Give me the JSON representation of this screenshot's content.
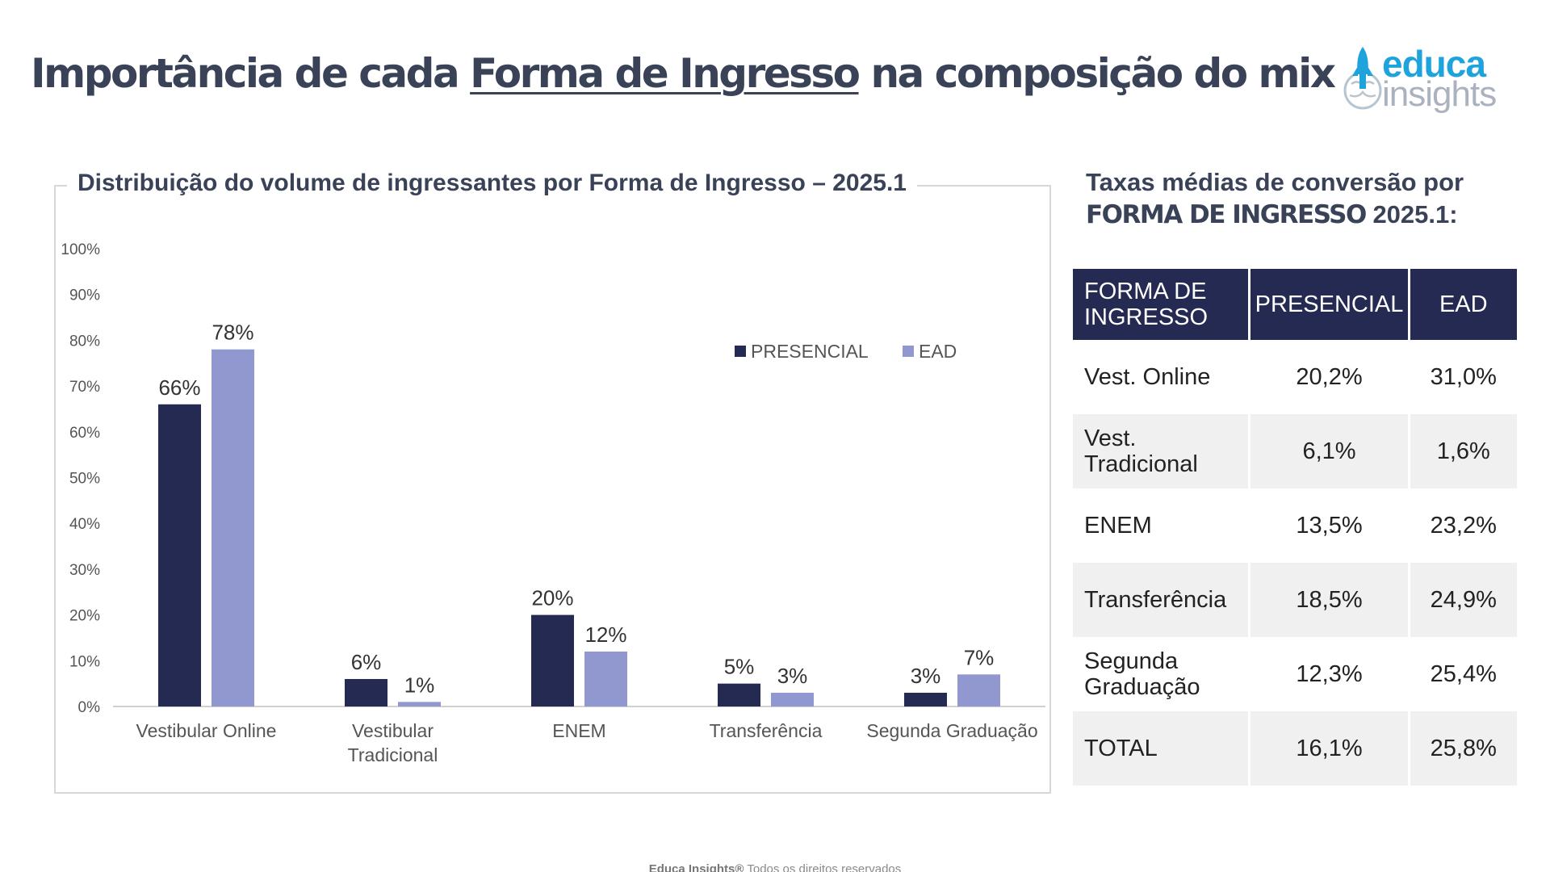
{
  "header": {
    "title_part1": "Importância de cada ",
    "title_underlined": "Forma de Ingresso",
    "title_part2": " na composição do mix",
    "logo_word1": "educa",
    "logo_word2": "insights"
  },
  "colors": {
    "presencial": "#252a52",
    "ead": "#9198d0",
    "header_bg": "#252a52"
  },
  "chart_data": {
    "type": "bar",
    "title": "Distribuição do volume de ingressantes por Forma de Ingresso – 2025.1",
    "categories": [
      "Vestibular Online",
      "Vestibular Tradicional",
      "ENEM",
      "Transferência",
      "Segunda Graduação"
    ],
    "category_lines": [
      [
        "Vestibular Online"
      ],
      [
        "Vestibular",
        "Tradicional"
      ],
      [
        "ENEM"
      ],
      [
        "Transferência"
      ],
      [
        "Segunda Graduação"
      ]
    ],
    "series": [
      {
        "name": "PRESENCIAL",
        "values": [
          66,
          6,
          20,
          5,
          3
        ],
        "labels": [
          "66%",
          "6%",
          "20%",
          "5%",
          "3%"
        ]
      },
      {
        "name": "EAD",
        "values": [
          78,
          1,
          12,
          3,
          7
        ],
        "labels": [
          "78%",
          "1%",
          "12%",
          "3%",
          "7%"
        ]
      }
    ],
    "ylim": [
      0,
      100
    ],
    "yticks": [
      "0%",
      "10%",
      "20%",
      "30%",
      "40%",
      "50%",
      "60%",
      "70%",
      "80%",
      "90%",
      "100%"
    ],
    "legend_position": "top-right",
    "grid": false
  },
  "conversion": {
    "title_line1": "Taxas médias de conversão por",
    "title_bold": "FORMA DE INGRESSO",
    "title_rest": " 2025.1:",
    "headers": [
      "FORMA DE INGRESSO",
      "PRESENCIAL",
      "EAD"
    ],
    "rows": [
      {
        "forma": "Vest. Online",
        "presencial": "20,2%",
        "ead": "31,0%"
      },
      {
        "forma": "Vest. Tradicional",
        "presencial": "6,1%",
        "ead": "1,6%"
      },
      {
        "forma": "ENEM",
        "presencial": "13,5%",
        "ead": "23,2%"
      },
      {
        "forma": "Transferência",
        "presencial": "18,5%",
        "ead": "24,9%"
      },
      {
        "forma": "Segunda Graduação",
        "presencial": "12,3%",
        "ead": "25,4%"
      },
      {
        "forma": "TOTAL",
        "presencial": "16,1%",
        "ead": "25,8%"
      }
    ]
  },
  "footer": {
    "brand": "Educa Insights®",
    "text": " Todos os direitos reservados"
  }
}
